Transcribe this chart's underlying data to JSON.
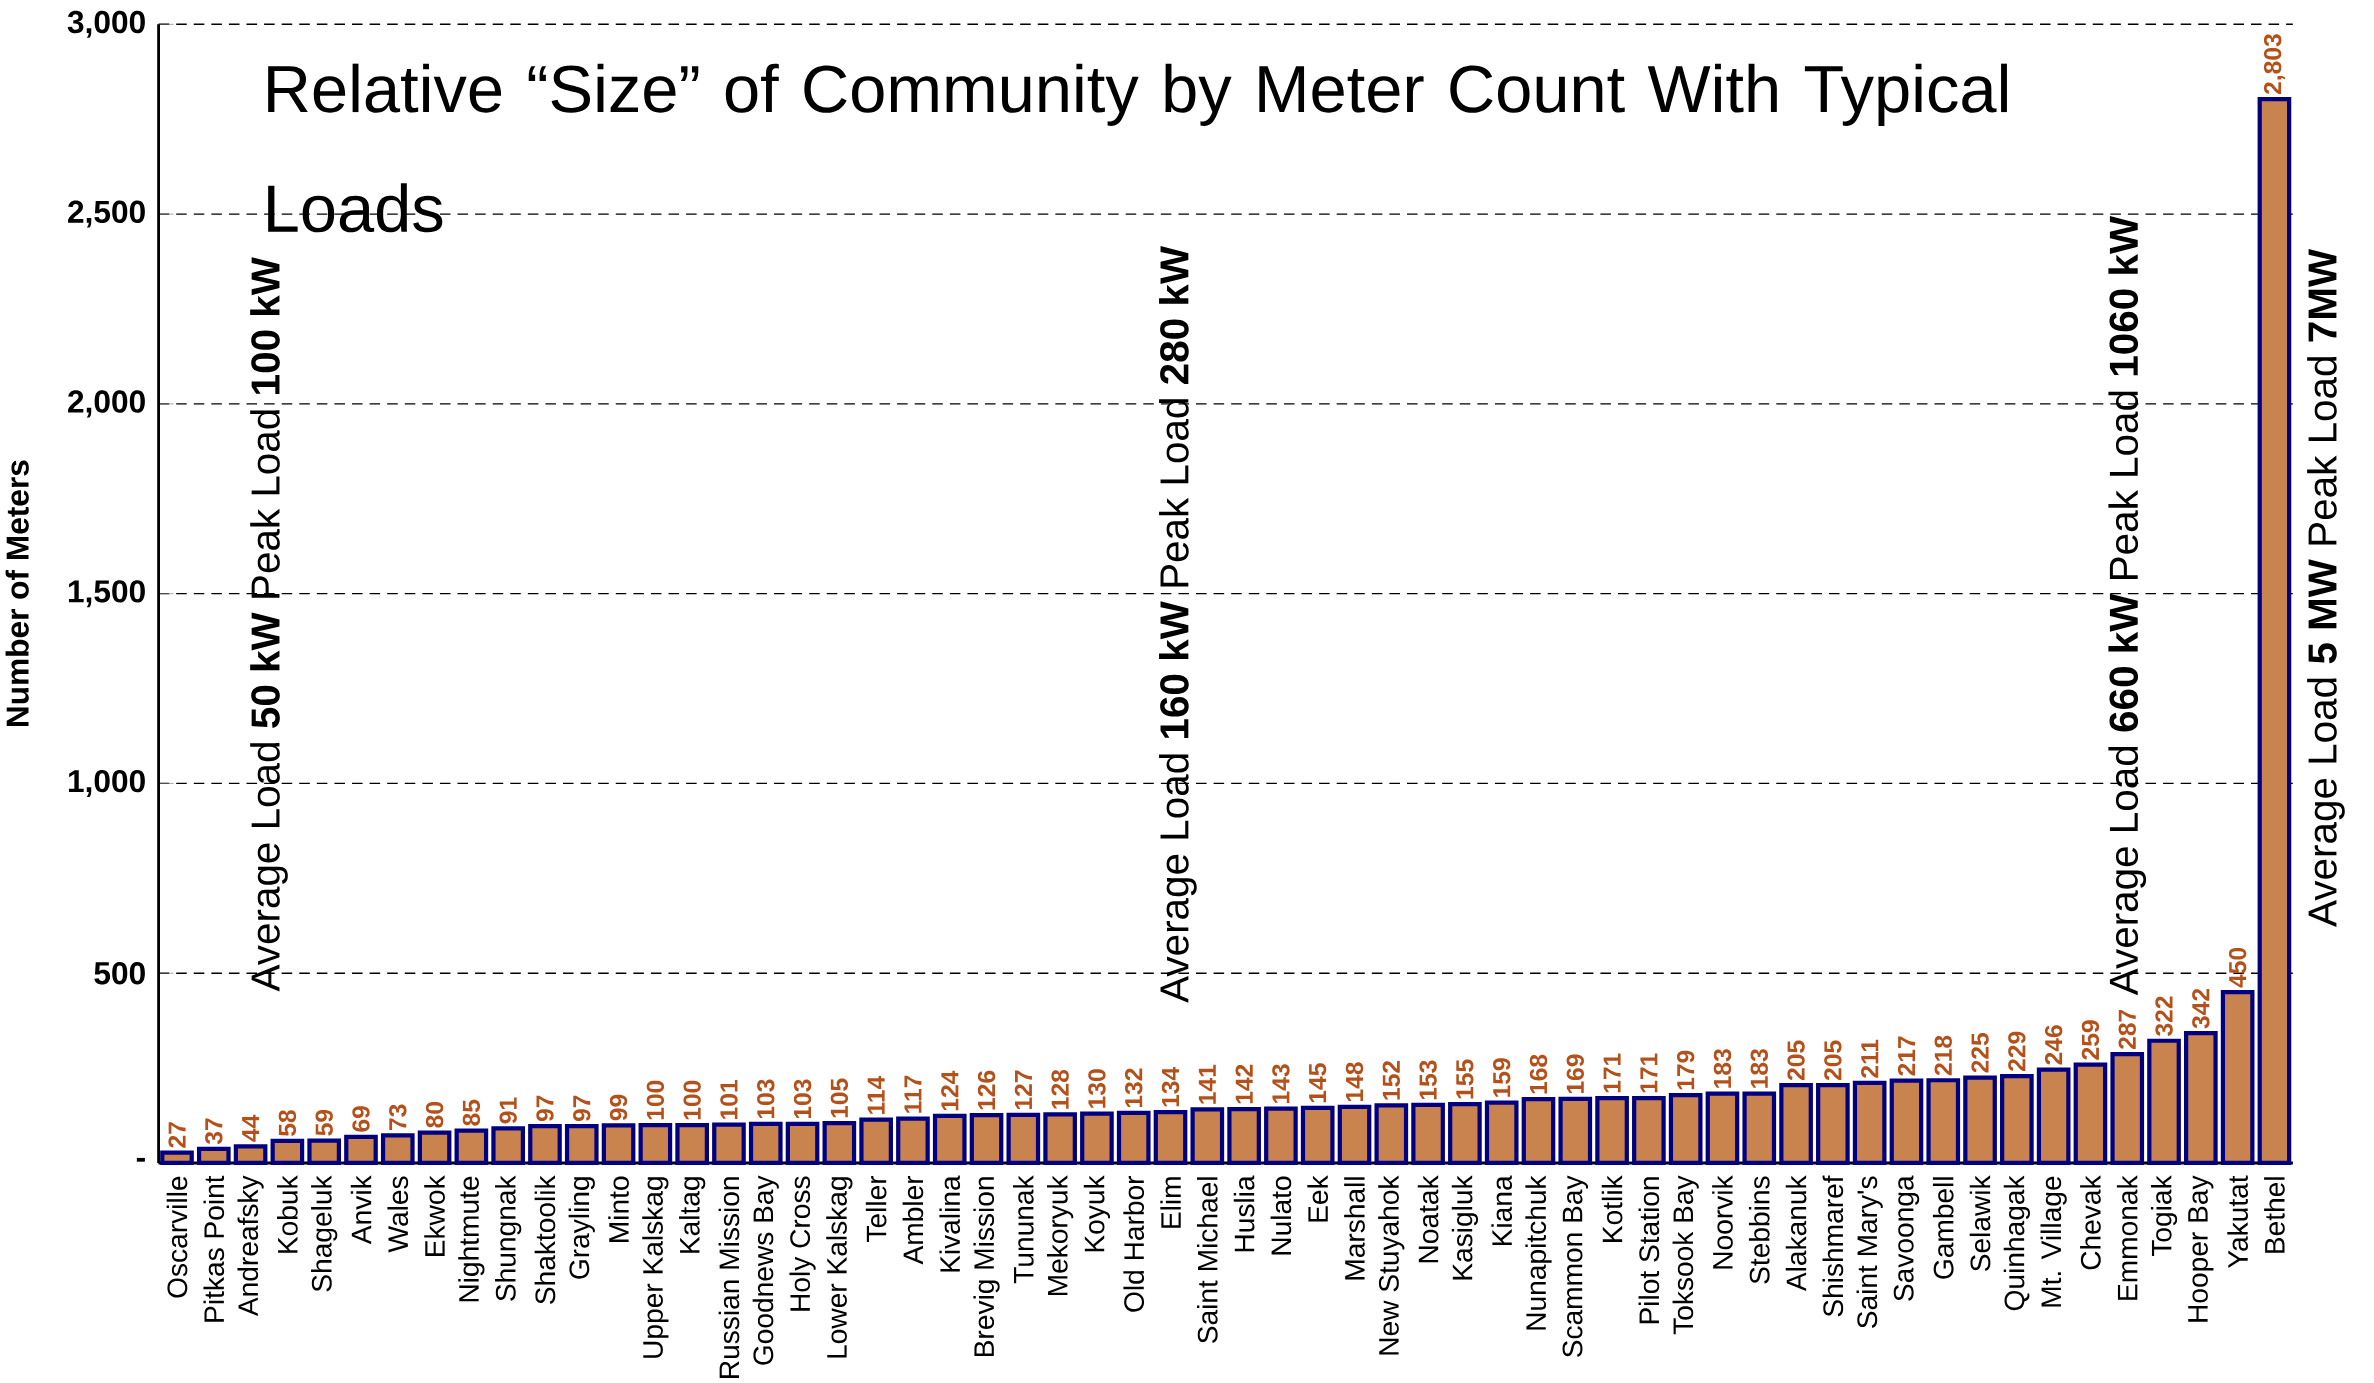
{
  "chart_data": {
    "type": "bar",
    "title": "Relative “Size” of Community by Meter Count With Typical Loads",
    "ylabel": "Number of Meters",
    "categories": [
      "Oscarville",
      "Pitkas Point",
      "Andreafsky",
      "Kobuk",
      "Shageluk",
      "Anvik",
      "Wales",
      "Ekwok",
      "Nightmute",
      "Shungnak",
      "Shaktoolik",
      "Grayling",
      "Minto",
      "Upper Kalskag",
      "Kaltag",
      "Russian Mission",
      "Goodnews Bay",
      "Holy Cross",
      "Lower Kalskag",
      "Teller",
      "Ambler",
      "Kivalina",
      "Brevig Mission",
      "Tununak",
      "Mekoryuk",
      "Koyuk",
      "Old Harbor",
      "Elim",
      "Saint Michael",
      "Huslia",
      "Nulato",
      "Eek",
      "Marshall",
      "New Stuyahok",
      "Noatak",
      "Kasigluk",
      "Kiana",
      "Nunapitchuk",
      "Scammon Bay",
      "Kotlik",
      "Pilot Station",
      "Toksook Bay",
      "Noorvik",
      "Stebbins",
      "Alakanuk",
      "Shishmaref",
      "Saint Mary's",
      "Savoonga",
      "Gambell",
      "Selawik",
      "Quinhagak",
      "Mt. Village",
      "Chevak",
      "Emmonak",
      "Togiak",
      "Hooper Bay",
      "Yakutat",
      "Bethel"
    ],
    "values": [
      27,
      37,
      44,
      58,
      59,
      69,
      73,
      80,
      85,
      91,
      97,
      97,
      99,
      100,
      100,
      101,
      103,
      103,
      105,
      114,
      117,
      124,
      126,
      127,
      128,
      130,
      132,
      134,
      141,
      142,
      143,
      145,
      148,
      152,
      153,
      155,
      159,
      168,
      169,
      171,
      171,
      179,
      183,
      183,
      205,
      205,
      211,
      217,
      218,
      225,
      229,
      246,
      259,
      287,
      322,
      342,
      450,
      2803
    ],
    "value_labels": [
      "27",
      "37",
      "44",
      "58",
      "59",
      "69",
      "73",
      "80",
      "85",
      "91",
      "97",
      "97",
      "99",
      "100",
      "100",
      "101",
      "103",
      "103",
      "105",
      "114",
      "117",
      "124",
      "126",
      "127",
      "128",
      "130",
      "132",
      "134",
      "141",
      "142",
      "143",
      "145",
      "148",
      "152",
      "153",
      "155",
      "159",
      "168",
      "169",
      "171",
      "171",
      "179",
      "183",
      "183",
      "205",
      "205",
      "211",
      "217",
      "218",
      "225",
      "229",
      "246",
      "259",
      "287",
      "322",
      "342",
      "450",
      "2,803"
    ],
    "color": "#c8834f",
    "ylim": [
      0,
      3000
    ],
    "yticks": [
      {
        "value": 0,
        "label": "-"
      },
      "500",
      {
        "value": 1000,
        "label": "1,000"
      },
      {
        "value": 1500,
        "label": "1,500"
      },
      {
        "value": 2000,
        "label": "2,000"
      },
      {
        "value": 2500,
        "label": "2,500"
      },
      {
        "value": 3000,
        "label": "3,000"
      }
    ],
    "grid": "y",
    "annotations": [
      "Average Load **50 kW**  Peak Load **100 kW**",
      "Average Load **160 kW**  Peak Load **280 kW**",
      "Average Load **660 kW**  Peak Load **1060 kW**",
      "Average Load **5 MW**  Peak Load **7MW**"
    ]
  }
}
